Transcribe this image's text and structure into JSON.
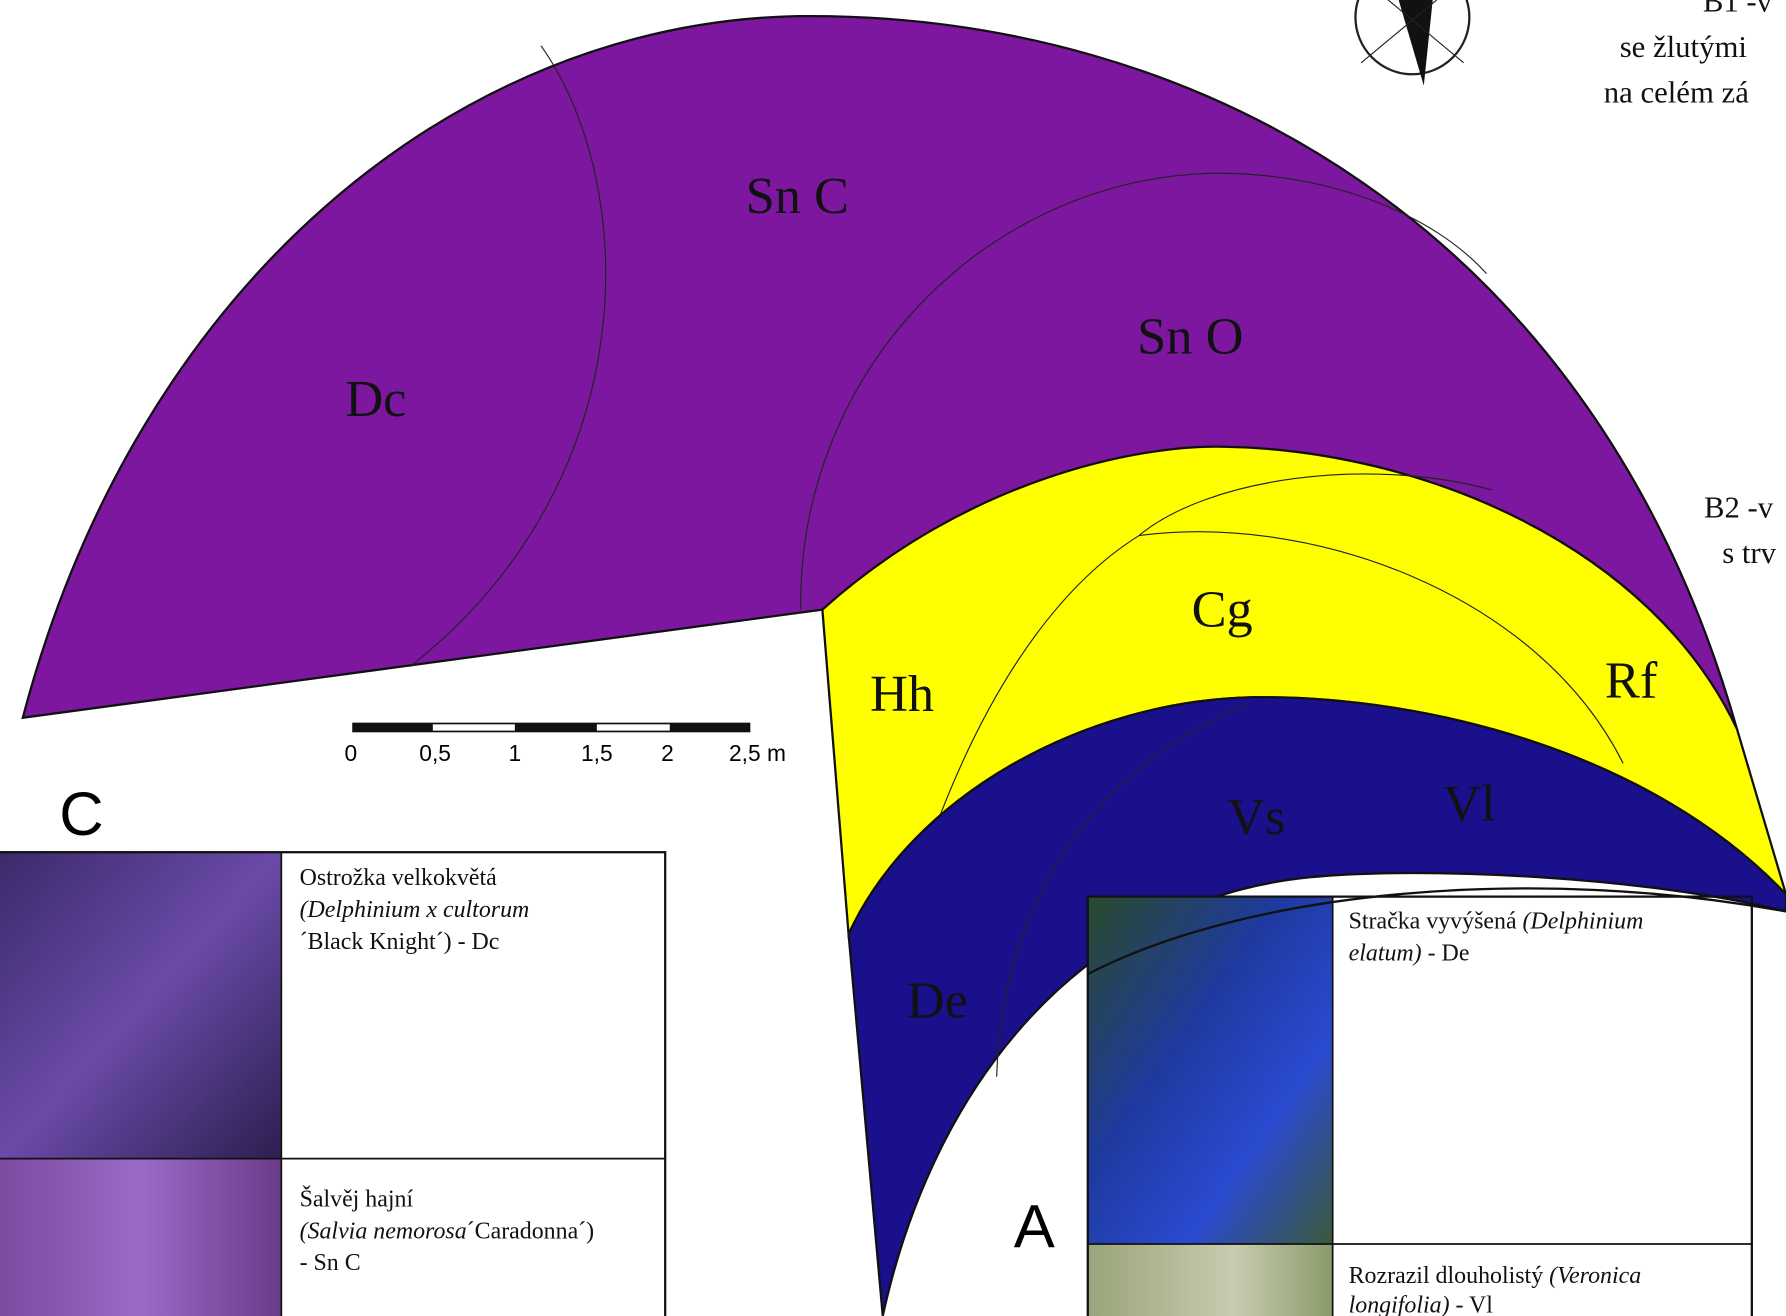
{
  "zones": {
    "dc": "Dc",
    "snc": "Sn C",
    "sno": "Sn O",
    "cg": "Cg",
    "hh": "Hh",
    "rf": "Rf",
    "vs": "Vs",
    "vl": "Vl",
    "de": "De"
  },
  "sections": {
    "c": "C",
    "a": "A"
  },
  "scale_bar": {
    "labels": [
      "0",
      "0,5",
      "1",
      "1,5",
      "2",
      "2,5 m"
    ]
  },
  "notes": {
    "b1": [
      "B1 -v",
      "se žlutými",
      "na celém zá"
    ],
    "b2": [
      "B2 -v",
      "s trv"
    ]
  },
  "tables": {
    "c": {
      "rows": [
        {
          "lines": [
            [
              "Ostrožka velkokvětá"
            ],
            [
              "(Delphinium x cultorum"
            ],
            [
              "´Black Knight´)  - Dc"
            ]
          ]
        },
        {
          "lines": [
            [
              "Šalvěj hajní"
            ],
            [
              "(Salvia nemorosa",
              "´Caradonna´)"
            ],
            [
              "- Sn C"
            ]
          ]
        }
      ]
    },
    "a": {
      "rows": [
        {
          "lines": [
            [
              "Stračka vyvýšená ",
              "(Delphinium"
            ],
            [
              "elatum)",
              " - De"
            ]
          ]
        },
        {
          "lines": [
            [
              "Rozrazil dlouholistý ",
              "(Veronica"
            ],
            [
              "longifolia)",
              " - Vl"
            ]
          ]
        }
      ]
    }
  }
}
